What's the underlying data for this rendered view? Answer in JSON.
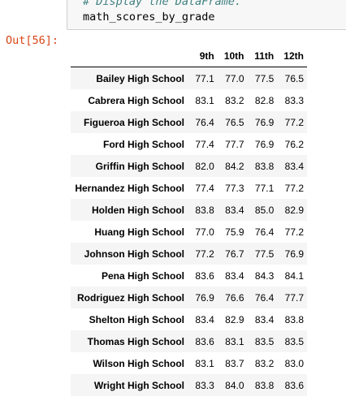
{
  "input_cell": {
    "comment": "# Display the DataFrame.",
    "code": "math_scores_by_grade"
  },
  "output": {
    "prompt": "Out[56]:"
  },
  "table": {
    "columns": [
      "9th",
      "10th",
      "11th",
      "12th"
    ],
    "rows": [
      {
        "school": "Bailey High School",
        "values": [
          "77.1",
          "77.0",
          "77.5",
          "76.5"
        ]
      },
      {
        "school": "Cabrera High School",
        "values": [
          "83.1",
          "83.2",
          "82.8",
          "83.3"
        ]
      },
      {
        "school": "Figueroa High School",
        "values": [
          "76.4",
          "76.5",
          "76.9",
          "77.2"
        ]
      },
      {
        "school": "Ford High School",
        "values": [
          "77.4",
          "77.7",
          "76.9",
          "76.2"
        ]
      },
      {
        "school": "Griffin High School",
        "values": [
          "82.0",
          "84.2",
          "83.8",
          "83.4"
        ]
      },
      {
        "school": "Hernandez High School",
        "values": [
          "77.4",
          "77.3",
          "77.1",
          "77.2"
        ]
      },
      {
        "school": "Holden High School",
        "values": [
          "83.8",
          "83.4",
          "85.0",
          "82.9"
        ]
      },
      {
        "school": "Huang High School",
        "values": [
          "77.0",
          "75.9",
          "76.4",
          "77.2"
        ]
      },
      {
        "school": "Johnson High School",
        "values": [
          "77.2",
          "76.7",
          "77.5",
          "76.9"
        ]
      },
      {
        "school": "Pena High School",
        "values": [
          "83.6",
          "83.4",
          "84.3",
          "84.1"
        ]
      },
      {
        "school": "Rodriguez High School",
        "values": [
          "76.9",
          "76.6",
          "76.4",
          "77.7"
        ]
      },
      {
        "school": "Shelton High School",
        "values": [
          "83.4",
          "82.9",
          "83.4",
          "83.8"
        ]
      },
      {
        "school": "Thomas High School",
        "values": [
          "83.6",
          "83.1",
          "83.5",
          "83.5"
        ]
      },
      {
        "school": "Wilson High School",
        "values": [
          "83.1",
          "83.7",
          "83.2",
          "83.0"
        ]
      },
      {
        "school": "Wright High School",
        "values": [
          "83.3",
          "84.0",
          "83.8",
          "83.6"
        ]
      }
    ]
  }
}
